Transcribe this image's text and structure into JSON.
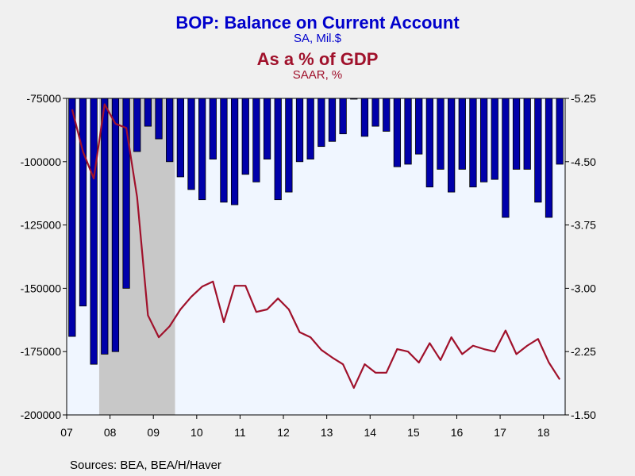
{
  "titles": {
    "main": "BOP: Balance on Current Account",
    "main_sub": "SA, Mil.$",
    "secondary": "As a % of GDP",
    "secondary_sub": "SAAR, %"
  },
  "source": "Sources:  BEA, BEA/H/Haver",
  "colors": {
    "background": "#f0f0f0",
    "plot_bg": "#f0f6ff",
    "bars": "#0000aa",
    "bar_edge": "#000000",
    "line": "#a0112b",
    "recession": "#c8c8c8",
    "title_blue": "#0000cc",
    "title_red": "#a0112b"
  },
  "chart_data": {
    "type": "bar+line",
    "x_tick_labels": [
      "07",
      "08",
      "09",
      "10",
      "11",
      "12",
      "13",
      "14",
      "15",
      "16",
      "17",
      "18"
    ],
    "left_axis": {
      "ylim": [
        -200000,
        -75000
      ],
      "ticks": [
        -75000,
        -100000,
        -125000,
        -150000,
        -175000,
        -200000
      ],
      "tick_labels": [
        "-75000",
        "-100000",
        "-125000",
        "-150000",
        "-175000",
        "-200000"
      ]
    },
    "right_axis": {
      "ylim": [
        -5.25,
        -1.5
      ],
      "ticks": [
        -1.5,
        -2.25,
        -3.0,
        -3.75,
        -4.5,
        -5.25
      ],
      "tick_labels": [
        "-1.50",
        "-2.25",
        "-3.00",
        "-3.75",
        "-4.50",
        "-5.25"
      ]
    },
    "quarters": [
      "2007Q1",
      "2007Q2",
      "2007Q3",
      "2007Q4",
      "2008Q1",
      "2008Q2",
      "2008Q3",
      "2008Q4",
      "2009Q1",
      "2009Q2",
      "2009Q3",
      "2009Q4",
      "2010Q1",
      "2010Q2",
      "2010Q3",
      "2010Q4",
      "2011Q1",
      "2011Q2",
      "2011Q3",
      "2011Q4",
      "2012Q1",
      "2012Q2",
      "2012Q3",
      "2012Q4",
      "2013Q1",
      "2013Q2",
      "2013Q3",
      "2013Q4",
      "2014Q1",
      "2014Q2",
      "2014Q3",
      "2014Q4",
      "2015Q1",
      "2015Q2",
      "2015Q3",
      "2015Q4",
      "2016Q1",
      "2016Q2",
      "2016Q3",
      "2016Q4",
      "2017Q1",
      "2017Q2",
      "2017Q3",
      "2017Q4",
      "2018Q1",
      "2018Q2"
    ],
    "recession": {
      "start": "2007Q4",
      "end": "2009Q2"
    },
    "series": [
      {
        "name": "BOP: Balance on Current Account",
        "type": "bar",
        "axis": "left",
        "values": [
          -169000,
          -157000,
          -180000,
          -176000,
          -175000,
          -150000,
          -96000,
          -86000,
          -91000,
          -100000,
          -106000,
          -111000,
          -115000,
          -99000,
          -116000,
          -117000,
          -105000,
          -108000,
          -99000,
          -115000,
          -112000,
          -100000,
          -99000,
          -94000,
          -92000,
          -89000,
          -75000,
          -90000,
          -86000,
          -88000,
          -102000,
          -101000,
          -97000,
          -110000,
          -103000,
          -112000,
          -103000,
          -110000,
          -108000,
          -107000,
          -122000,
          -103000,
          -103000,
          -116000,
          -122000,
          -101000
        ]
      },
      {
        "name": "As a % of GDP",
        "type": "line",
        "axis": "right",
        "values": [
          -5.12,
          -4.62,
          -4.3,
          -5.18,
          -4.95,
          -4.9,
          -4.08,
          -2.68,
          -2.42,
          -2.55,
          -2.75,
          -2.9,
          -3.02,
          -3.08,
          -2.6,
          -3.03,
          -3.03,
          -2.72,
          -2.75,
          -2.88,
          -2.75,
          -2.48,
          -2.42,
          -2.27,
          -2.18,
          -2.1,
          -1.82,
          -2.1,
          -2.0,
          -2.0,
          -2.28,
          -2.25,
          -2.12,
          -2.35,
          -2.15,
          -2.42,
          -2.22,
          -2.32,
          -2.28,
          -2.25,
          -2.5,
          -2.22,
          -2.32,
          -2.4,
          -2.12,
          -1.92
        ]
      }
    ]
  }
}
